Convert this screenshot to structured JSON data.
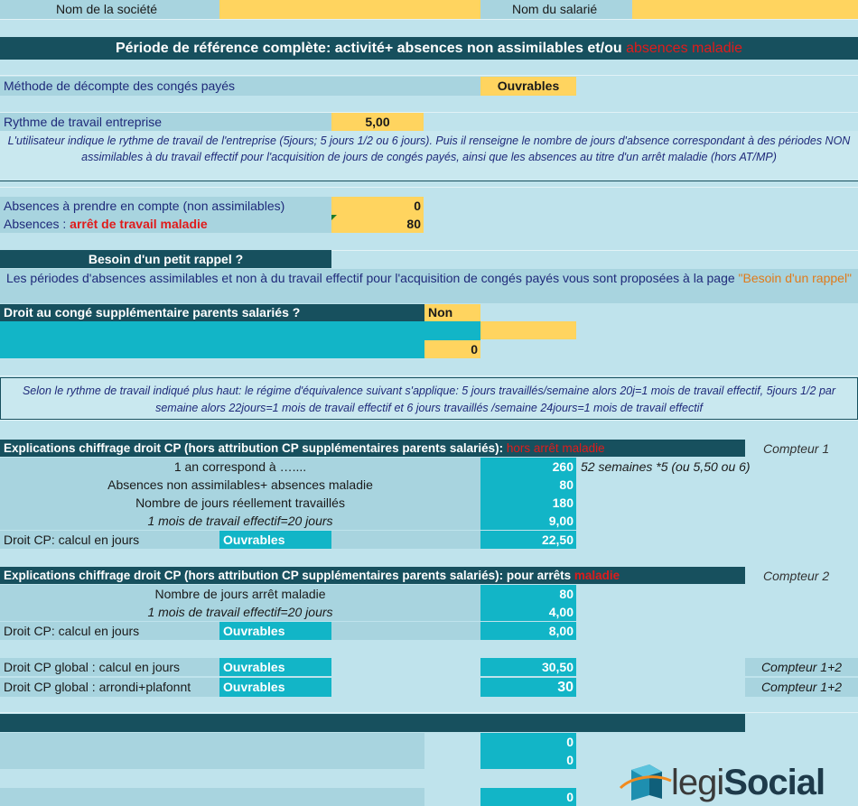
{
  "header": {
    "company_label": "Nom de la société",
    "employee_label": "Nom du salarié"
  },
  "banner": {
    "title_main": "Période de référence complète:  activité+ absences non assimilables et/ou ",
    "title_red": "absences maladie"
  },
  "method": {
    "label": "Méthode de décompte des congés payés",
    "value": "Ouvrables"
  },
  "rhythm": {
    "label": "Rythme de travail entreprise",
    "value": "5,00",
    "note": "L'utilisateur indique le rythme de travail de l'entreprise (5jours; 5 jours 1/2 ou 6 jours).  Puis il renseigne le nombre de jours d'absence correspondant à des périodes NON assimilables à du travail effectif pour l'acquisition de jours de congés payés, ainsi que les absences au titre d'un arrêt maladie (hors AT/MP)"
  },
  "absences": {
    "non_assim_label": "Absences à prendre en compte (non assimilables)",
    "non_assim_value": "0",
    "maladie_label_prefix": "Absences : ",
    "maladie_label_red": "arrêt de travail maladie",
    "maladie_value": "80"
  },
  "reminder": {
    "title": "Besoin d'un petit rappel ?",
    "text": "Les périodes d'absences assimilables et non  à du travail effectif pour l'acquisition de congés payés vous sont proposées à la page ",
    "link": "\"Besoin d'un rappel\""
  },
  "parents": {
    "label": "Droit au congé supplémentaire parents salariés ?",
    "value": "Non",
    "count": "0"
  },
  "equivalence_note": "Selon le rythme de travail indiqué plus haut: le régime d'équivalence suivant s'applique: 5 jours travaillés/semaine alors 20j=1 mois de travail effectif, 5jours 1/2 par semaine alors 22jours=1 mois de travail effectif et 6 jours travaillés /semaine 24jours=1 mois de travail effectif",
  "section1": {
    "title": "Explications chiffrage droit CP (hors attribution CP supplémentaires parents salariés): ",
    "title_red": "hors arrêt maladie",
    "counter": "Compteur 1",
    "rows": [
      {
        "label": "1 an correspond à …....",
        "value": "260",
        "note": "52 semaines *5 (ou 5,50 ou 6)"
      },
      {
        "label": "Absences non assimilables+ absences maladie",
        "value": "80"
      },
      {
        "label": "Nombre de jours réellement travaillés",
        "value": "180"
      },
      {
        "label": "1 mois de travail effectif=20 jours",
        "value": "9,00"
      }
    ],
    "result_label": "Droit CP: calcul en jours",
    "result_method": "Ouvrables",
    "result_value": "22,50"
  },
  "section2": {
    "title": "Explications chiffrage droit CP (hors attribution CP supplémentaires parents salariés): pour arrêts ",
    "title_red": "maladie",
    "counter": "Compteur 2",
    "rows": [
      {
        "label": "Nombre de jours arrêt maladie",
        "value": "80"
      },
      {
        "label": "1 mois de travail effectif=20 jours",
        "value": "4,00"
      }
    ],
    "result_label": "Droit CP: calcul en jours",
    "result_method": "Ouvrables",
    "result_value": "8,00"
  },
  "global": {
    "row1_label": "Droit CP global : calcul en jours",
    "row1_method": "Ouvrables",
    "row1_value": "30,50",
    "row1_counter": "Compteur 1+2",
    "row2_label": "Droit CP global : arrondi+plafonnt",
    "row2_method": "Ouvrables",
    "row2_value": "30",
    "row2_counter": "Compteur 1+2"
  },
  "bottom": {
    "v1": "0",
    "v2": "0",
    "v3": "0"
  },
  "logo": {
    "text_a": "legi",
    "text_b": "Social"
  }
}
